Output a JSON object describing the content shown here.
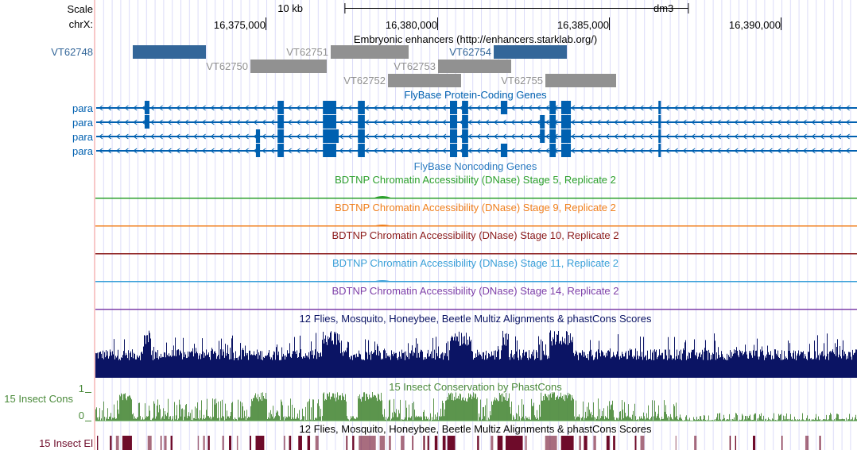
{
  "view": {
    "chrom": "chrX",
    "start": 16370023,
    "end": 16392222
  },
  "ruler": {
    "scale_label": "Scale",
    "scale_bar_text": "10 kb",
    "scale_bar_bp": 10000,
    "scale_bar_start": 16377300,
    "assembly": "dm3",
    "chrom_label": "chrX:",
    "ticks": [
      {
        "pos": 16375000,
        "label": "16,375,000"
      },
      {
        "pos": 16380000,
        "label": "16,380,000"
      },
      {
        "pos": 16385000,
        "label": "16,385,000"
      },
      {
        "pos": 16390000,
        "label": "16,390,000"
      }
    ]
  },
  "enhancers": {
    "title": "Embryonic enhancers (http://enhancers.starklab.org/)",
    "left_label": "VT62748",
    "colors": {
      "active": "#336699",
      "inactive": "#919191"
    },
    "items": [
      {
        "name": "VT62748",
        "start": 16371134,
        "end": 16373264,
        "row": 0,
        "active": true,
        "label_in_margin": true
      },
      {
        "name": "VT62751",
        "start": 16376898,
        "end": 16379167,
        "row": 0,
        "active": false
      },
      {
        "name": "VT62754",
        "start": 16381644,
        "end": 16383773,
        "row": 0,
        "active": true
      },
      {
        "name": "VT62750",
        "start": 16374560,
        "end": 16376782,
        "row": 1,
        "active": false
      },
      {
        "name": "VT62753",
        "start": 16380023,
        "end": 16382153,
        "row": 1,
        "active": false
      },
      {
        "name": "VT62752",
        "start": 16378565,
        "end": 16380694,
        "row": 2,
        "active": false
      },
      {
        "name": "VT62755",
        "start": 16383148,
        "end": 16385208,
        "row": 2,
        "active": false
      }
    ]
  },
  "genes": {
    "title": "FlyBase Protein-Coding Genes",
    "color": "#0060b0",
    "transcripts": [
      {
        "name": "para",
        "strand": "-",
        "exons": [
          [
            16371480,
            16371620
          ],
          [
            16375350,
            16375530
          ],
          [
            16376670,
            16377060
          ],
          [
            16377690,
            16377890
          ],
          [
            16380370,
            16380580
          ],
          [
            16380720,
            16380900
          ],
          [
            16381850,
            16382040
          ],
          [
            16383270,
            16383450
          ],
          [
            16383610,
            16383890
          ],
          [
            16386440,
            16386510
          ]
        ]
      },
      {
        "name": "para",
        "strand": "-",
        "exons": [
          [
            16371480,
            16371620
          ],
          [
            16375350,
            16375530
          ],
          [
            16376670,
            16377060
          ],
          [
            16377690,
            16377890
          ],
          [
            16380370,
            16380580
          ],
          [
            16380720,
            16380900
          ],
          [
            16382990,
            16383130
          ],
          [
            16383270,
            16383450
          ],
          [
            16383610,
            16383890
          ],
          [
            16386440,
            16386510
          ]
        ]
      },
      {
        "name": "para",
        "strand": "-",
        "exons": [
          [
            16374720,
            16374840
          ],
          [
            16375350,
            16375530
          ],
          [
            16376670,
            16377130
          ],
          [
            16377690,
            16377890
          ],
          [
            16380370,
            16380580
          ],
          [
            16380720,
            16380900
          ],
          [
            16382990,
            16383130
          ],
          [
            16383270,
            16383450
          ],
          [
            16383610,
            16383890
          ],
          [
            16386440,
            16386510
          ]
        ]
      },
      {
        "name": "para",
        "strand": "-",
        "exons": [
          [
            16374720,
            16374840
          ],
          [
            16375350,
            16375530
          ],
          [
            16376670,
            16377060
          ],
          [
            16377690,
            16377890
          ],
          [
            16380370,
            16380580
          ],
          [
            16380720,
            16380900
          ],
          [
            16381850,
            16382040
          ],
          [
            16383270,
            16383450
          ],
          [
            16383610,
            16383890
          ],
          [
            16386440,
            16386510
          ]
        ]
      }
    ]
  },
  "noncoding": {
    "title": "FlyBase Noncoding Genes"
  },
  "dnase": [
    {
      "title": "BDTNP Chromatin Accessibility (DNase) Stage 5, Replicate 2",
      "color": "#2ca02c"
    },
    {
      "title": "BDTNP Chromatin Accessibility (DNase) Stage 9, Replicate 2",
      "color": "#f07f1c"
    },
    {
      "title": "BDTNP Chromatin Accessibility (DNase) Stage 10, Replicate 2",
      "color": "#8b1a1a"
    },
    {
      "title": "BDTNP Chromatin Accessibility (DNase) Stage 11, Replicate 2",
      "color": "#3aa0d8"
    },
    {
      "title": "BDTNP Chromatin Accessibility (DNase) Stage 14, Replicate 2",
      "color": "#7e3fa8"
    }
  ],
  "multiz": {
    "title": "12 Flies, Mosquito, Honeybee, Beetle Multiz Alignments & phastCons Scores",
    "color": "#0b1464"
  },
  "cons": {
    "title": "15 Insect Conservation by PhastCons",
    "left_label": "15 Insect Cons",
    "y_max_label": "1",
    "y_min_label": "0",
    "color": "#4a8a3a"
  },
  "elements": {
    "title": "12 Flies, Mosquito, Honeybee, Beetle Multiz Alignments & phastCons Scores",
    "left_label": "15 Insect El",
    "color": "#6e0b2a"
  }
}
